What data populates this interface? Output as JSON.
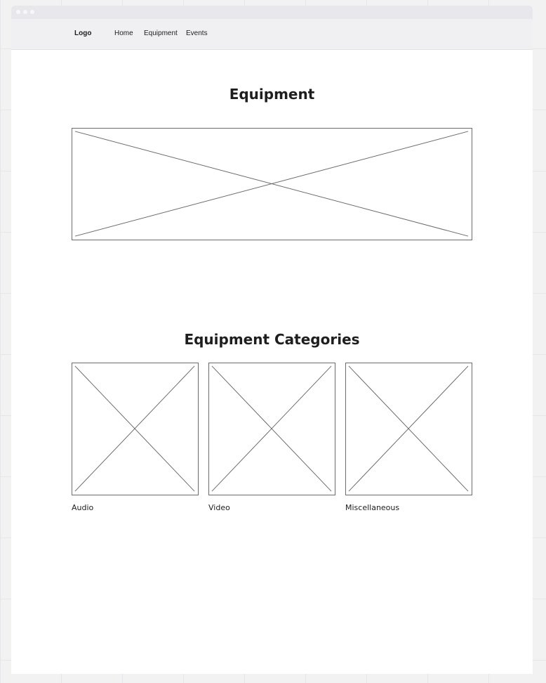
{
  "navbar": {
    "logo": "Logo",
    "links": [
      "Home",
      "Equipment",
      "Events"
    ]
  },
  "main": {
    "title": "Equipment",
    "categories_title": "Equipment Categories",
    "categories": [
      {
        "label": "Audio"
      },
      {
        "label": "Video"
      },
      {
        "label": "Miscellaneous"
      }
    ]
  },
  "colors": {
    "page_background": "#f2f2f3",
    "navbar_background": "#f0f0f2",
    "placeholder_stroke": "#6b6b6b",
    "text": "#1e1e1e"
  }
}
